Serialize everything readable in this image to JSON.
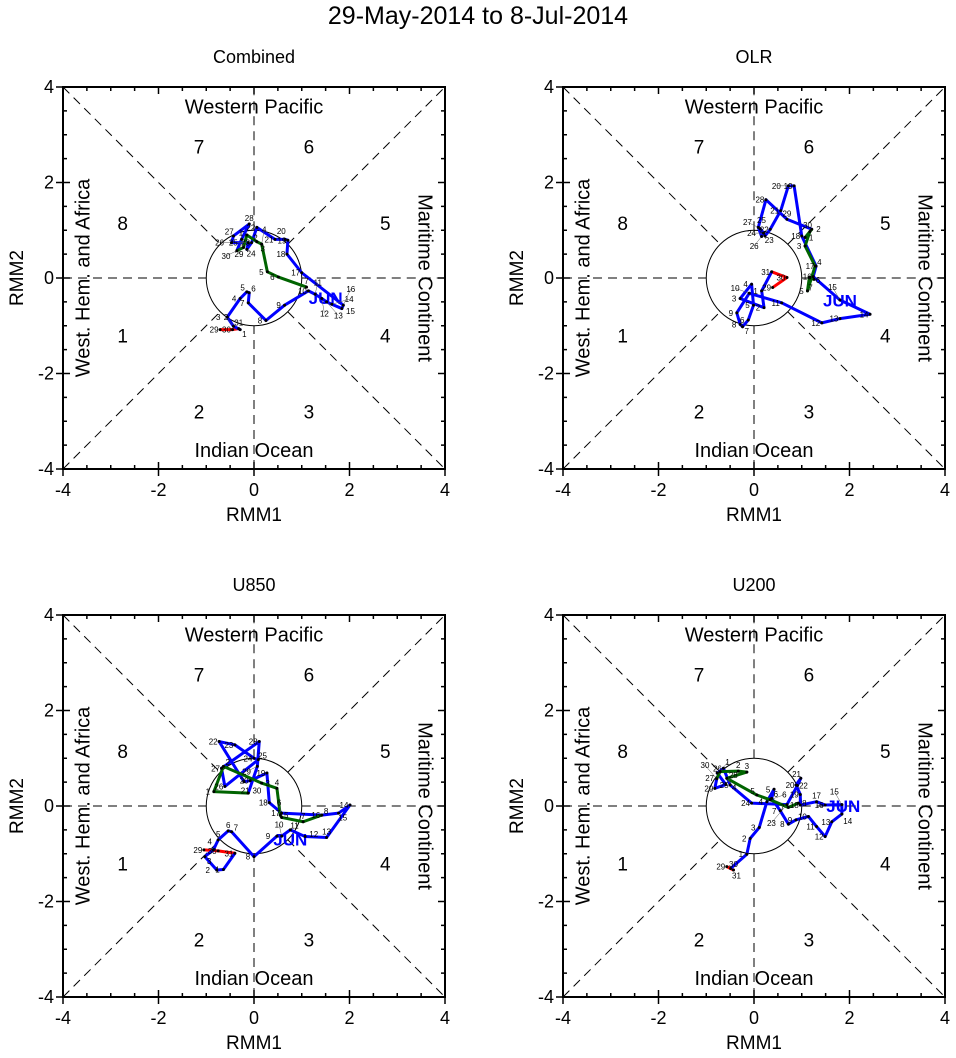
{
  "title": "29-May-2014 to 8-Jul-2014",
  "colors": {
    "may": "#ff0000",
    "jun": "#0000ff",
    "jul": "#006400",
    "axis": "#000000"
  },
  "chart_data": [
    {
      "type": "line",
      "title": "Combined",
      "xlabel": "RMM1",
      "ylabel": "RMM2",
      "xlim": [
        -4,
        4
      ],
      "ylim": [
        -4,
        4
      ],
      "xticks": [
        "-4",
        "-2",
        "0",
        "2",
        "4"
      ],
      "yticks": [
        "-4",
        "-2",
        "0",
        "2",
        "4"
      ],
      "regions": {
        "top": "Western Pacific",
        "bottom": "Indian Ocean",
        "left": "West. Hem. and Africa",
        "right": "Maritime Continent"
      },
      "phases": [
        "1",
        "2",
        "3",
        "4",
        "5",
        "6",
        "7",
        "8"
      ],
      "month_label": "JUN",
      "month_label_at": [
        1.5,
        -0.4
      ],
      "series": [
        {
          "name": "May",
          "days": [
            29,
            30,
            31
          ],
          "points": [
            [
              -0.71,
              -1.08
            ],
            [
              -0.45,
              -1.08
            ],
            [
              -0.32,
              -1.06
            ]
          ]
        },
        {
          "name": "Jun",
          "days": [
            1,
            2,
            3,
            4,
            5,
            6,
            7,
            8,
            9,
            10,
            11,
            12,
            13,
            14,
            15,
            16,
            17,
            18,
            19,
            20,
            21,
            22,
            23,
            24,
            25,
            26,
            27,
            28,
            29,
            30
          ],
          "points": [
            [
              -0.29,
              -1.08
            ],
            [
              -0.43,
              -1.01
            ],
            [
              -0.56,
              -0.82
            ],
            [
              -0.29,
              -0.43
            ],
            [
              -0.15,
              -0.29
            ],
            [
              -0.1,
              -0.31
            ],
            [
              -0.12,
              -0.52
            ],
            [
              0.25,
              -0.89
            ],
            [
              0.64,
              -0.57
            ],
            [
              1.14,
              -0.27
            ],
            [
              1.28,
              -0.34
            ],
            [
              1.42,
              -0.43
            ],
            [
              1.52,
              -0.5
            ],
            [
              1.63,
              -0.55
            ],
            [
              1.84,
              -0.64
            ],
            [
              1.87,
              -0.57
            ],
            [
              1.0,
              0.11
            ],
            [
              0.69,
              0.5
            ],
            [
              0.71,
              0.79
            ],
            [
              0.65,
              0.81
            ],
            [
              0.44,
              0.81
            ],
            [
              0.06,
              1.06
            ],
            [
              -0.05,
              0.74
            ],
            [
              -0.15,
              0.6
            ],
            [
              -0.12,
              0.74
            ],
            [
              -0.47,
              0.74
            ],
            [
              -0.43,
              0.88
            ],
            [
              -0.1,
              1.13
            ],
            [
              -0.26,
              0.81
            ],
            [
              -0.36,
              0.57
            ]
          ]
        },
        {
          "name": "Jul",
          "days": [
            1,
            2,
            3,
            4,
            5,
            6,
            7
          ],
          "points": [
            [
              -0.22,
              0.64
            ],
            [
              -0.15,
              0.9
            ],
            [
              0.06,
              0.76
            ],
            [
              0.16,
              0.71
            ],
            [
              0.28,
              0.13
            ],
            [
              0.51,
              0.02
            ],
            [
              1.1,
              -0.19
            ]
          ]
        }
      ]
    },
    {
      "type": "line",
      "title": "OLR",
      "xlabel": "RMM1",
      "ylabel": "RMM2",
      "xlim": [
        -4,
        4
      ],
      "ylim": [
        -4,
        4
      ],
      "xticks": [
        "-4",
        "-2",
        "0",
        "2",
        "4"
      ],
      "yticks": [
        "-4",
        "-2",
        "0",
        "2",
        "4"
      ],
      "regions": {
        "top": "Western Pacific",
        "bottom": "Indian Ocean",
        "left": "West. Hem. and Africa",
        "right": "Maritime Continent"
      },
      "phases": [
        "1",
        "2",
        "3",
        "4",
        "5",
        "6",
        "7",
        "8"
      ],
      "month_label": "JUN",
      "month_label_at": [
        1.8,
        -0.45
      ],
      "series": [
        {
          "name": "May",
          "days": [
            29,
            30,
            31
          ],
          "points": [
            [
              0.39,
              -0.2
            ],
            [
              0.69,
              0.01
            ],
            [
              0.37,
              0.13
            ]
          ]
        },
        {
          "name": "Jun",
          "days": [
            1,
            2,
            3,
            4,
            5,
            6,
            7,
            8,
            9,
            10,
            11,
            12,
            13,
            14,
            15,
            16,
            17,
            18,
            19,
            20,
            21,
            22,
            23,
            24,
            25,
            26,
            27,
            28,
            29,
            30
          ],
          "points": [
            [
              0.16,
              -0.27
            ],
            [
              0.21,
              -0.62
            ],
            [
              -0.29,
              -0.43
            ],
            [
              -0.05,
              -0.13
            ],
            [
              -0.01,
              -0.57
            ],
            [
              -0.12,
              -0.88
            ],
            [
              -0.24,
              -1.02
            ],
            [
              -0.29,
              -0.97
            ],
            [
              -0.36,
              -0.73
            ],
            [
              -0.1,
              -0.32
            ],
            [
              0.58,
              -0.52
            ],
            [
              1.42,
              -0.94
            ],
            [
              1.8,
              -0.85
            ],
            [
              2.43,
              -0.76
            ],
            [
              1.8,
              -0.46
            ],
            [
              1.24,
              0.03
            ],
            [
              1.3,
              0.25
            ],
            [
              1.0,
              0.88
            ],
            [
              0.84,
              1.93
            ],
            [
              0.72,
              1.93
            ],
            [
              0.56,
              1.41
            ],
            [
              0.34,
              1.02
            ],
            [
              0.23,
              0.88
            ],
            [
              0.2,
              0.94
            ],
            [
              0.13,
              1.03
            ],
            [
              0.16,
              0.87
            ],
            [
              0.09,
              1.06
            ],
            [
              0.25,
              1.64
            ],
            [
              0.69,
              1.23
            ],
            [
              1.21,
              1.02
            ]
          ]
        },
        {
          "name": "Jul",
          "days": [
            1,
            2,
            3,
            4,
            5,
            6,
            7
          ],
          "points": [
            [
              1.07,
              0.85
            ],
            [
              1.17,
              0.97
            ],
            [
              1.07,
              0.67
            ],
            [
              1.28,
              0.25
            ],
            [
              1.12,
              -0.27
            ],
            [
              1.16,
              0.01
            ],
            [
              1.26,
              -0.03
            ]
          ]
        }
      ]
    },
    {
      "type": "line",
      "title": "U850",
      "xlabel": "RMM1",
      "ylabel": "RMM2",
      "xlim": [
        -4,
        4
      ],
      "ylim": [
        -4,
        4
      ],
      "xticks": [
        "-4",
        "-2",
        "0",
        "2",
        "4"
      ],
      "yticks": [
        "-4",
        "-2",
        "0",
        "2",
        "4"
      ],
      "regions": {
        "top": "Western Pacific",
        "bottom": "Indian Ocean",
        "left": "West. Hem. and Africa",
        "right": "Maritime Continent"
      },
      "phases": [
        "1",
        "2",
        "3",
        "4",
        "5",
        "6",
        "7",
        "8"
      ],
      "month_label": "JUN",
      "month_label_at": [
        0.76,
        -0.68
      ],
      "series": [
        {
          "name": "May",
          "days": [
            29,
            30,
            31
          ],
          "points": [
            [
              -1.05,
              -0.92
            ],
            [
              -0.75,
              -0.94
            ],
            [
              -0.4,
              -0.99
            ]
          ]
        },
        {
          "name": "Jun",
          "days": [
            1,
            2,
            3,
            4,
            5,
            6,
            7,
            8,
            9,
            10,
            11,
            12,
            13,
            14,
            15,
            16,
            17,
            18,
            19,
            20,
            21,
            22,
            23,
            24,
            25,
            26,
            27,
            28,
            29,
            30
          ],
          "points": [
            [
              -0.64,
              -1.33
            ],
            [
              -0.78,
              -1.34
            ],
            [
              -1.03,
              -1.06
            ],
            [
              -0.85,
              -0.92
            ],
            [
              -0.75,
              -0.71
            ],
            [
              -0.54,
              -0.52
            ],
            [
              -0.47,
              -0.54
            ],
            [
              0.0,
              -1.06
            ],
            [
              0.48,
              -0.63
            ],
            [
              0.58,
              -0.63
            ],
            [
              0.76,
              -0.5
            ],
            [
              1.07,
              -0.64
            ],
            [
              1.52,
              -0.66
            ],
            [
              2.01,
              0.02
            ],
            [
              1.77,
              -0.15
            ],
            [
              1.42,
              -0.19
            ],
            [
              0.58,
              -0.15
            ],
            [
              0.32,
              0.07
            ],
            [
              0.27,
              0.69
            ],
            [
              -0.08,
              0.53
            ],
            [
              -0.21,
              0.51
            ],
            [
              -0.73,
              1.35
            ],
            [
              -0.4,
              1.28
            ],
            [
              0.0,
              1.0
            ],
            [
              0.09,
              0.97
            ],
            [
              -0.61,
              0.41
            ],
            [
              -0.68,
              0.79
            ],
            [
              0.11,
              1.35
            ],
            [
              0.07,
              0.83
            ],
            [
              -0.12,
              0.27
            ]
          ]
        },
        {
          "name": "Jul",
          "days": [
            1,
            2,
            3,
            4,
            5,
            6,
            7,
            8
          ],
          "points": [
            [
              -0.84,
              0.3
            ],
            [
              -0.64,
              0.83
            ],
            [
              0.16,
              0.48
            ],
            [
              0.48,
              0.37
            ],
            [
              0.55,
              -0.19
            ],
            [
              0.58,
              -0.24
            ],
            [
              1.03,
              -0.33
            ],
            [
              1.42,
              -0.19
            ]
          ]
        }
      ]
    },
    {
      "type": "line",
      "title": "U200",
      "xlabel": "RMM1",
      "ylabel": "RMM2",
      "xlim": [
        -4,
        4
      ],
      "ylim": [
        -4,
        4
      ],
      "xticks": [
        "-4",
        "-2",
        "0",
        "2",
        "4"
      ],
      "yticks": [
        "-4",
        "-2",
        "0",
        "2",
        "4"
      ],
      "regions": {
        "top": "Western Pacific",
        "bottom": "Indian Ocean",
        "left": "West. Hem. and Africa",
        "right": "Maritime Continent"
      },
      "phases": [
        "1",
        "2",
        "3",
        "4",
        "5",
        "6",
        "7",
        "8"
      ],
      "month_label": "JUN",
      "month_label_at": [
        1.87,
        0.02
      ],
      "series": [
        {
          "name": "May",
          "days": [
            29,
            30,
            31
          ],
          "points": [
            [
              -0.57,
              -1.27
            ],
            [
              -0.43,
              -1.34
            ],
            [
              -0.49,
              -1.31
            ]
          ]
        },
        {
          "name": "Jun",
          "days": [
            1,
            2,
            3,
            4,
            5,
            6,
            7,
            8,
            9,
            10,
            11,
            12,
            13,
            14,
            15,
            16,
            17,
            18,
            19,
            20,
            21,
            22,
            23,
            24,
            25,
            26,
            27,
            28,
            29,
            30
          ],
          "points": [
            [
              -0.15,
              -1.01
            ],
            [
              -0.08,
              -0.68
            ],
            [
              0.11,
              -0.45
            ],
            [
              0.27,
              0.09
            ],
            [
              0.42,
              0.35
            ],
            [
              0.37,
              0.16
            ],
            [
              0.55,
              -0.1
            ],
            [
              0.72,
              -0.38
            ],
            [
              0.88,
              -0.29
            ],
            [
              1.14,
              -0.22
            ],
            [
              1.31,
              -0.43
            ],
            [
              1.49,
              -0.64
            ],
            [
              1.63,
              -0.33
            ],
            [
              1.84,
              -0.17
            ],
            [
              1.84,
              0.03
            ],
            [
              1.49,
              0.02
            ],
            [
              1.31,
              0.09
            ],
            [
              0.97,
              0.02
            ],
            [
              0.97,
              0.24
            ],
            [
              0.88,
              0.44
            ],
            [
              0.98,
              0.58
            ],
            [
              0.91,
              0.43
            ],
            [
              0.69,
              0.03
            ],
            [
              -0.05,
              0.06
            ],
            [
              -0.5,
              0.44
            ],
            [
              -0.64,
              0.79
            ],
            [
              -0.77,
              0.69
            ],
            [
              -0.59,
              0.45
            ],
            [
              -0.82,
              0.37
            ],
            [
              -0.78,
              0.57
            ]
          ]
        },
        {
          "name": "Jul",
          "days": [
            1,
            2,
            3,
            4,
            5,
            6,
            7,
            8
          ],
          "points": [
            [
              -0.71,
              0.72
            ],
            [
              -0.33,
              0.73
            ],
            [
              -0.15,
              0.71
            ],
            [
              -0.57,
              0.58
            ],
            [
              0.06,
              0.23
            ],
            [
              0.34,
              0.13
            ],
            [
              0.72,
              -0.03
            ],
            [
              0.93,
              0.06
            ]
          ]
        }
      ]
    }
  ]
}
